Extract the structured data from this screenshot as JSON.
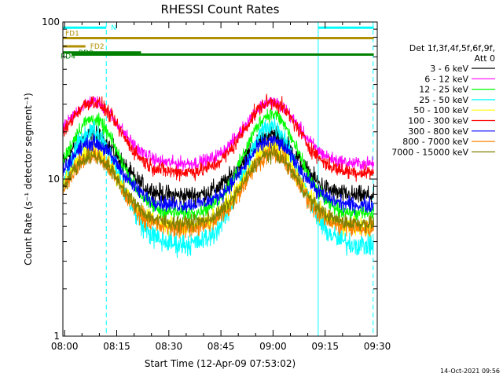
{
  "chart_data": {
    "type": "line",
    "title": "RHESSI Count Rates",
    "xlabel": "Start Time (12-Apr-09 07:53:02)",
    "ylabel": "Count Rate (s⁻¹ detector segment⁻¹)",
    "y_scale": "log",
    "ylim": [
      1,
      100
    ],
    "x_range_minutes": [
      7.5,
      98
    ],
    "x_ticks": [
      {
        "m": 8,
        "label": "08:00"
      },
      {
        "m": 23,
        "label": "08:15"
      },
      {
        "m": 38,
        "label": "08:30"
      },
      {
        "m": 53,
        "label": "08:45"
      },
      {
        "m": 68,
        "label": "09:00"
      },
      {
        "m": 83,
        "label": "09:15"
      },
      {
        "m": 98,
        "label": "09:30"
      }
    ],
    "y_ticks": [
      {
        "v": 1,
        "label": "1"
      },
      {
        "v": 10,
        "label": "10"
      },
      {
        "v": 100,
        "label": "100"
      }
    ],
    "legend_header": [
      "Det 1f,3f,4f,5f,6f,9f,",
      "Att 0"
    ],
    "series": [
      {
        "name": "3 - 6 keV",
        "color": "#000000",
        "min": 7.8,
        "peak": [
          19,
          19
        ],
        "noise": 0.1
      },
      {
        "name": "6 - 12 keV",
        "color": "#ff00ff",
        "min": 12.5,
        "peak": [
          31,
          31
        ],
        "noise": 0.07
      },
      {
        "name": "12 - 25 keV",
        "color": "#00ff00",
        "min": 6.0,
        "peak": [
          24,
          26
        ],
        "noise": 0.08
      },
      {
        "name": "25 - 50 keV",
        "color": "#00ffff",
        "min": 3.8,
        "peak": [
          20,
          22
        ],
        "noise": 0.12
      },
      {
        "name": "50 - 100 keV",
        "color": "#ffff00",
        "min": 5.0,
        "peak": [
          15,
          16
        ],
        "noise": 0.1
      },
      {
        "name": "100 - 300 keV",
        "color": "#ff0000",
        "min": 11.0,
        "peak": [
          31,
          31
        ],
        "noise": 0.08
      },
      {
        "name": "300 - 800 keV",
        "color": "#0000ff",
        "min": 6.8,
        "peak": [
          17,
          17.5
        ],
        "noise": 0.08
      },
      {
        "name": "800 - 7000 keV",
        "color": "#ff8000",
        "min": 4.8,
        "peak": [
          14,
          14.5
        ],
        "noise": 0.1
      },
      {
        "name": "7000 - 15000 keV",
        "color": "#808000",
        "min": 5.2,
        "peak": [
          14,
          14.5
        ],
        "noise": 0.08
      }
    ],
    "peaks_minutes": [
      16.0,
      67.5
    ],
    "peak_width_minutes": 11,
    "x_data_start_minutes": 7.5,
    "x_data_end_minutes": 97,
    "flag_bars": [
      {
        "label": "N",
        "color": "#00ffff",
        "y": 92,
        "segments": [
          [
            7.5,
            20
          ],
          [
            81,
            97
          ]
        ]
      },
      {
        "label": "FD1",
        "color": "#b09000",
        "y": 79,
        "segments": [
          [
            7.5,
            97
          ]
        ]
      },
      {
        "label": "FD2",
        "color": "#b09000",
        "y": 70,
        "segments": [
          [
            7.5,
            14
          ]
        ]
      },
      {
        "label": "RD0",
        "color": "#008000",
        "y": 64,
        "segments": [
          [
            7.5,
            30
          ]
        ]
      },
      {
        "label": "RD4",
        "color": "#008000",
        "y": 62,
        "segments": [
          [
            10,
            30
          ],
          [
            30,
            97
          ]
        ]
      }
    ],
    "vlines": [
      {
        "m": 7.5,
        "style": "solid",
        "color": "#00ffff"
      },
      {
        "m": 20.0,
        "style": "dashed",
        "color": "#00ffff"
      },
      {
        "m": 81.0,
        "style": "solid",
        "color": "#00ffff"
      },
      {
        "m": 96.8,
        "style": "dashed",
        "color": "#00ffff"
      }
    ],
    "timestamp": "14-Oct-2021 09:56"
  }
}
